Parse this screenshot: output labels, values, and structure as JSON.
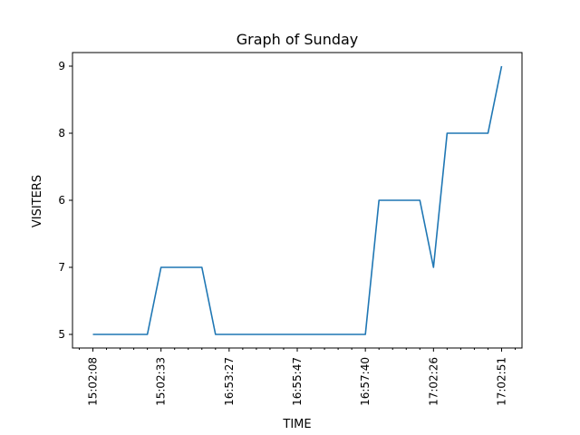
{
  "chart_data": {
    "type": "line",
    "title": "Graph of Sunday",
    "xlabel": "TIME",
    "ylabel": "VISITERS",
    "y_axis_kind": "categorical",
    "y_categories": [
      "5",
      "7",
      "6",
      "8",
      "9"
    ],
    "x_tick_labels": [
      "15:02:08",
      "15:02:33",
      "16:53:27",
      "16:55:47",
      "16:57:40",
      "17:02:26",
      "17:02:51"
    ],
    "x_axis_kind": "categorical",
    "x_major_tick_every": 5,
    "grid": false,
    "series": [
      {
        "color": "#1f77b4",
        "values": [
          "5",
          "5",
          "5",
          "5",
          "5",
          "7",
          "7",
          "7",
          "7",
          "5",
          "5",
          "5",
          "5",
          "5",
          "5",
          "5",
          "5",
          "5",
          "5",
          "5",
          "5",
          "6",
          "6",
          "6",
          "6",
          "7",
          "8",
          "8",
          "8",
          "8",
          "9"
        ]
      }
    ]
  }
}
